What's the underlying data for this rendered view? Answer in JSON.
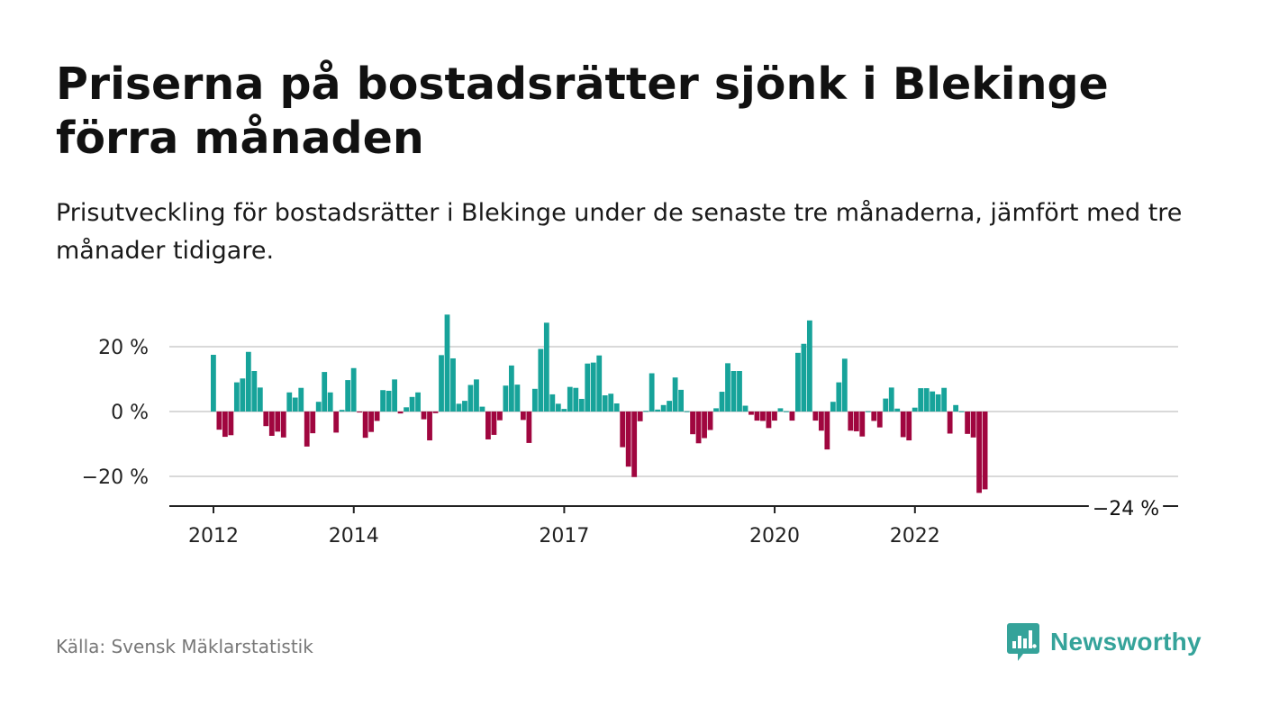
{
  "header": {
    "title": "Priserna på bostadsrätter sjönk i Blekinge förra månaden",
    "subtitle": "Prisutveckling för bostadsrätter i Blekinge under de senaste tre månaderna, jämfört med tre månader tidigare."
  },
  "footer": {
    "source": "Källa: Svensk Mäklarstatistik",
    "brand": "Newsworthy"
  },
  "colors": {
    "positive": "#17a39a",
    "negative": "#a0063f",
    "grid": "#d9d9d9",
    "axis": "#222222",
    "brand": "#35a39a"
  },
  "chart_data": {
    "type": "bar",
    "title": "Priserna på bostadsrätter sjönk i Blekinge förra månaden",
    "subtitle": "Prisutveckling för bostadsrätter i Blekinge under de senaste tre månaderna, jämfört med tre månader tidigare.",
    "unit": "%",
    "x_start": "2012-01",
    "x_ticks": [
      {
        "label": "2012",
        "date": "2012-01"
      },
      {
        "label": "2014",
        "date": "2014-01"
      },
      {
        "label": "2017",
        "date": "2017-01"
      },
      {
        "label": "2020",
        "date": "2020-01"
      },
      {
        "label": "2022",
        "date": "2022-01"
      }
    ],
    "y_ticks": [
      {
        "label": "20 %",
        "value": 20
      },
      {
        "label": "0 %",
        "value": 0
      },
      {
        "label": "−20 %",
        "value": -20
      }
    ],
    "ylim": [
      -29,
      31
    ],
    "grid": true,
    "last_label": "−24 %",
    "values": [
      17.5,
      -5.6,
      -7.8,
      -7.3,
      9.0,
      10.2,
      18.4,
      12.5,
      7.4,
      -4.5,
      -7.5,
      -6.2,
      -8.0,
      5.9,
      4.3,
      7.3,
      -10.8,
      -6.7,
      3.0,
      12.2,
      5.9,
      -6.5,
      0.5,
      9.7,
      13.4,
      -0.3,
      -8.1,
      -6.3,
      -2.9,
      6.6,
      6.4,
      9.9,
      -0.6,
      1.3,
      4.5,
      5.9,
      -2.4,
      -8.9,
      -0.5,
      17.4,
      29.9,
      16.4,
      2.4,
      3.3,
      8.2,
      9.9,
      1.5,
      -8.6,
      -7.2,
      -2.7,
      8.0,
      14.2,
      8.3,
      -2.6,
      -9.7,
      7.0,
      19.3,
      27.4,
      5.3,
      2.4,
      0.8,
      7.6,
      7.3,
      3.9,
      14.8,
      15.1,
      17.3,
      5.0,
      5.5,
      2.5,
      -11.0,
      -17.0,
      -20.2,
      -3.0,
      0.2,
      11.8,
      0.6,
      2.0,
      3.3,
      10.5,
      6.7,
      0.1,
      -7.0,
      -9.8,
      -8.2,
      -5.7,
      1.0,
      6.1,
      14.9,
      12.5,
      12.5,
      1.8,
      -1.0,
      -2.8,
      -2.9,
      -5.1,
      -2.8,
      1.0,
      0.1,
      -2.8,
      18.1,
      20.9,
      28.1,
      -2.8,
      -5.9,
      -11.7,
      3.0,
      9.0,
      16.3,
      -5.9,
      -6.1,
      -7.7,
      0.1,
      -2.9,
      -4.9,
      4.0,
      7.4,
      0.9,
      -7.9,
      -8.9,
      1.2,
      7.2,
      7.2,
      6.2,
      5.3,
      7.3,
      -6.8,
      2.0,
      0.1,
      -6.9,
      -8.0,
      -25.1,
      -24.0
    ]
  }
}
